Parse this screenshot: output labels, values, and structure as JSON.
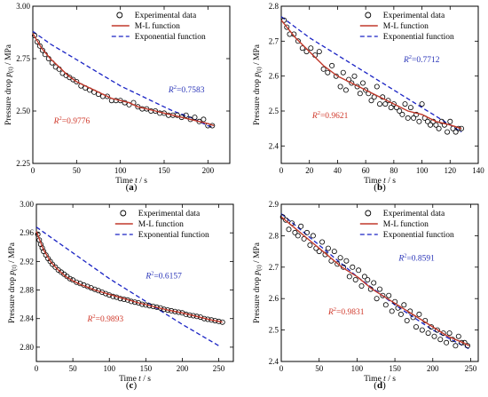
{
  "chart_data": [
    {
      "panel_label": "(a)",
      "type": "scatter",
      "xlabel": "Time t / s",
      "ylabel": "Pressure drop p_(t) / MPa",
      "xlim": [
        0,
        225
      ],
      "ylim": [
        2.25,
        3.0
      ],
      "xticks": [
        0,
        50,
        100,
        150,
        200
      ],
      "yticks": [
        2.25,
        2.5,
        2.75,
        3.0
      ],
      "ytick_labels": [
        "2.25",
        "2.50",
        "2.75",
        "3.00"
      ],
      "legend_position": "top-right",
      "legend": [
        "Experimental data",
        "M-L function",
        "Exponential function"
      ],
      "experimental": {
        "x": [
          2,
          5,
          8,
          11,
          14,
          18,
          22,
          26,
          30,
          34,
          38,
          42,
          46,
          50,
          55,
          60,
          65,
          70,
          75,
          80,
          85,
          90,
          95,
          100,
          105,
          110,
          115,
          120,
          125,
          130,
          135,
          140,
          145,
          150,
          155,
          160,
          165,
          170,
          175,
          180,
          185,
          190,
          195,
          200,
          205
        ],
        "y": [
          2.86,
          2.83,
          2.81,
          2.79,
          2.77,
          2.75,
          2.73,
          2.71,
          2.7,
          2.68,
          2.67,
          2.66,
          2.65,
          2.64,
          2.62,
          2.61,
          2.6,
          2.59,
          2.58,
          2.57,
          2.57,
          2.55,
          2.55,
          2.55,
          2.54,
          2.53,
          2.54,
          2.52,
          2.51,
          2.51,
          2.5,
          2.5,
          2.49,
          2.49,
          2.48,
          2.48,
          2.48,
          2.47,
          2.48,
          2.46,
          2.47,
          2.45,
          2.46,
          2.43,
          2.43
        ]
      },
      "ml_fit": {
        "x": [
          0,
          10,
          20,
          30,
          40,
          50,
          60,
          70,
          80,
          90,
          100,
          110,
          120,
          130,
          140,
          150,
          160,
          170,
          180,
          190,
          200,
          207
        ],
        "y": [
          2.87,
          2.8,
          2.75,
          2.71,
          2.67,
          2.64,
          2.62,
          2.6,
          2.58,
          2.56,
          2.55,
          2.54,
          2.52,
          2.51,
          2.5,
          2.49,
          2.48,
          2.47,
          2.46,
          2.45,
          2.44,
          2.43
        ]
      },
      "exp_fit": {
        "x": [
          0,
          20,
          40,
          60,
          80,
          100,
          120,
          140,
          160,
          180,
          200,
          207
        ],
        "y": [
          2.88,
          2.82,
          2.77,
          2.72,
          2.67,
          2.62,
          2.58,
          2.54,
          2.5,
          2.47,
          2.43,
          2.42
        ]
      },
      "annotations": [
        {
          "text_prefix": "R",
          "text_sup": "2",
          "text_value": "=0.7583",
          "color": "#2a35b8",
          "at": [
            155,
            2.59
          ]
        },
        {
          "text_prefix": "R",
          "text_sup": "2",
          "text_value": "=0.9776",
          "color": "#d0392b",
          "at": [
            24,
            2.44
          ]
        }
      ]
    },
    {
      "panel_label": "(b)",
      "type": "scatter",
      "xlabel": "Time t / s",
      "ylabel": "Pressure drop p_(t) / MPa",
      "xlim": [
        0,
        140
      ],
      "ylim": [
        2.35,
        2.8
      ],
      "xticks": [
        0,
        20,
        40,
        60,
        80,
        100,
        120,
        140
      ],
      "yticks": [
        2.4,
        2.5,
        2.6,
        2.7,
        2.8
      ],
      "ytick_labels": [
        "2.4",
        "2.5",
        "2.6",
        "2.7",
        "2.8"
      ],
      "legend_position": "top-right",
      "legend": [
        "Experimental data",
        "M-L function",
        "Exponential function"
      ],
      "experimental": {
        "x": [
          2,
          4,
          6,
          9,
          12,
          15,
          18,
          21,
          24,
          27,
          30,
          33,
          36,
          39,
          42,
          44,
          46,
          48,
          50,
          52,
          54,
          56,
          58,
          60,
          62,
          64,
          66,
          68,
          70,
          72,
          74,
          76,
          78,
          80,
          82,
          84,
          86,
          88,
          90,
          92,
          94,
          96,
          98,
          100,
          102,
          104,
          106,
          108,
          110,
          112,
          114,
          116,
          118,
          120,
          122,
          124,
          126,
          128
        ],
        "y": [
          2.76,
          2.74,
          2.72,
          2.72,
          2.7,
          2.68,
          2.67,
          2.68,
          2.66,
          2.67,
          2.62,
          2.61,
          2.63,
          2.6,
          2.57,
          2.61,
          2.56,
          2.59,
          2.58,
          2.6,
          2.57,
          2.55,
          2.58,
          2.56,
          2.55,
          2.53,
          2.54,
          2.57,
          2.52,
          2.54,
          2.52,
          2.53,
          2.51,
          2.52,
          2.51,
          2.5,
          2.49,
          2.52,
          2.48,
          2.51,
          2.48,
          2.49,
          2.47,
          2.52,
          2.48,
          2.47,
          2.46,
          2.47,
          2.46,
          2.45,
          2.47,
          2.46,
          2.44,
          2.47,
          2.45,
          2.44,
          2.45,
          2.45
        ]
      },
      "ml_fit": {
        "x": [
          0,
          10,
          20,
          30,
          40,
          50,
          60,
          70,
          80,
          90,
          100,
          110,
          120,
          128
        ],
        "y": [
          2.76,
          2.71,
          2.67,
          2.63,
          2.6,
          2.58,
          2.56,
          2.54,
          2.52,
          2.5,
          2.49,
          2.47,
          2.46,
          2.45
        ]
      },
      "exp_fit": {
        "x": [
          0,
          20,
          40,
          60,
          80,
          100,
          120,
          128
        ],
        "y": [
          2.77,
          2.71,
          2.66,
          2.61,
          2.56,
          2.51,
          2.46,
          2.44
        ]
      },
      "annotations": [
        {
          "text_prefix": "R",
          "text_sup": "2",
          "text_value": "=0.7712",
          "color": "#2a35b8",
          "at": [
            87,
            2.64
          ]
        },
        {
          "text_prefix": "R",
          "text_sup": "2",
          "text_value": "=0.9621",
          "color": "#d0392b",
          "at": [
            22,
            2.48
          ]
        }
      ]
    },
    {
      "panel_label": "(c)",
      "type": "scatter",
      "xlabel": "Time t / s",
      "ylabel": "Pressure drop p_(t) / MPa",
      "xlim": [
        0,
        270
      ],
      "ylim": [
        2.78,
        3.0
      ],
      "xticks": [
        0,
        50,
        100,
        150,
        200,
        250
      ],
      "yticks": [
        2.8,
        2.84,
        2.88,
        2.92,
        2.96,
        3.0
      ],
      "ytick_labels": [
        "2.80",
        "2.84",
        "2.88",
        "2.92",
        "2.96",
        "3.00"
      ],
      "legend_position": "top-right",
      "legend": [
        "Experimental data",
        "M-L function",
        "Exponential function"
      ],
      "experimental": {
        "x": [
          2,
          4,
          6,
          8,
          10,
          13,
          16,
          19,
          22,
          26,
          30,
          34,
          38,
          42,
          46,
          50,
          55,
          60,
          65,
          70,
          75,
          80,
          85,
          90,
          95,
          100,
          105,
          110,
          115,
          120,
          125,
          130,
          135,
          140,
          145,
          150,
          155,
          160,
          165,
          170,
          175,
          180,
          185,
          190,
          195,
          200,
          205,
          210,
          215,
          220,
          225,
          230,
          235,
          240,
          245,
          250,
          255
        ],
        "y": [
          2.958,
          2.95,
          2.944,
          2.939,
          2.934,
          2.929,
          2.924,
          2.92,
          2.916,
          2.912,
          2.908,
          2.905,
          2.902,
          2.899,
          2.896,
          2.894,
          2.891,
          2.889,
          2.887,
          2.885,
          2.883,
          2.881,
          2.879,
          2.877,
          2.875,
          2.873,
          2.871,
          2.87,
          2.868,
          2.867,
          2.866,
          2.864,
          2.863,
          2.862,
          2.86,
          2.859,
          2.858,
          2.857,
          2.856,
          2.855,
          2.853,
          2.852,
          2.851,
          2.85,
          2.849,
          2.848,
          2.846,
          2.845,
          2.844,
          2.843,
          2.842,
          2.84,
          2.839,
          2.838,
          2.837,
          2.836,
          2.835
        ]
      },
      "ml_fit": {
        "x": [
          0,
          10,
          20,
          30,
          40,
          50,
          60,
          70,
          80,
          90,
          100,
          120,
          140,
          160,
          180,
          200,
          220,
          240,
          255
        ],
        "y": [
          2.962,
          2.936,
          2.919,
          2.908,
          2.899,
          2.893,
          2.888,
          2.884,
          2.88,
          2.877,
          2.874,
          2.868,
          2.862,
          2.857,
          2.852,
          2.848,
          2.843,
          2.838,
          2.835
        ]
      },
      "exp_fit": {
        "x": [
          0,
          50,
          100,
          150,
          200,
          250
        ],
        "y": [
          2.968,
          2.932,
          2.896,
          2.864,
          2.832,
          2.802
        ]
      },
      "annotations": [
        {
          "text_prefix": "R",
          "text_sup": "2",
          "text_value": "=0.6157",
          "color": "#2a35b8",
          "at": [
            150,
            2.896
          ]
        },
        {
          "text_prefix": "R",
          "text_sup": "2",
          "text_value": "=0.9893",
          "color": "#d0392b",
          "at": [
            70,
            2.836
          ]
        }
      ]
    },
    {
      "panel_label": "(d)",
      "type": "scatter",
      "xlabel": "Time t / s",
      "ylabel": "Pressure drop p_(t) / MPa",
      "xlim": [
        0,
        260
      ],
      "ylim": [
        2.4,
        2.9
      ],
      "xticks": [
        0,
        50,
        100,
        150,
        200,
        250
      ],
      "yticks": [
        2.4,
        2.5,
        2.6,
        2.7,
        2.8,
        2.9
      ],
      "ytick_labels": [
        "2.4",
        "2.5",
        "2.6",
        "2.7",
        "2.8",
        "2.9"
      ],
      "legend_position": "top-right",
      "legend": [
        "Experimental data",
        "M-L function",
        "Exponential function"
      ],
      "experimental": {
        "x": [
          2,
          6,
          10,
          14,
          18,
          22,
          26,
          30,
          34,
          38,
          42,
          46,
          50,
          54,
          58,
          62,
          66,
          70,
          74,
          78,
          82,
          86,
          90,
          94,
          98,
          102,
          106,
          110,
          114,
          118,
          122,
          126,
          130,
          134,
          138,
          142,
          146,
          150,
          154,
          158,
          162,
          166,
          170,
          174,
          178,
          182,
          186,
          190,
          194,
          198,
          202,
          206,
          210,
          214,
          218,
          222,
          226,
          230,
          234,
          238,
          242,
          246
        ],
        "y": [
          2.86,
          2.85,
          2.82,
          2.84,
          2.81,
          2.8,
          2.83,
          2.79,
          2.81,
          2.77,
          2.8,
          2.76,
          2.75,
          2.78,
          2.74,
          2.76,
          2.72,
          2.75,
          2.71,
          2.73,
          2.7,
          2.72,
          2.67,
          2.7,
          2.66,
          2.69,
          2.64,
          2.67,
          2.66,
          2.63,
          2.65,
          2.6,
          2.63,
          2.61,
          2.58,
          2.61,
          2.56,
          2.59,
          2.57,
          2.55,
          2.58,
          2.53,
          2.56,
          2.54,
          2.51,
          2.55,
          2.5,
          2.53,
          2.49,
          2.51,
          2.48,
          2.5,
          2.47,
          2.49,
          2.46,
          2.49,
          2.47,
          2.45,
          2.48,
          2.46,
          2.46,
          2.45
        ]
      },
      "ml_fit": {
        "x": [
          0,
          20,
          40,
          60,
          80,
          100,
          120,
          140,
          160,
          180,
          200,
          220,
          240,
          248
        ],
        "y": [
          2.86,
          2.82,
          2.78,
          2.74,
          2.7,
          2.67,
          2.63,
          2.6,
          2.57,
          2.54,
          2.51,
          2.48,
          2.46,
          2.45
        ]
      },
      "exp_fit": {
        "x": [
          0,
          50,
          100,
          150,
          200,
          248
        ],
        "y": [
          2.87,
          2.77,
          2.67,
          2.58,
          2.5,
          2.44
        ]
      },
      "annotations": [
        {
          "text_prefix": "R",
          "text_sup": "2",
          "text_value": "=0.8591",
          "color": "#2a35b8",
          "at": [
            155,
            2.72
          ]
        },
        {
          "text_prefix": "R",
          "text_sup": "2",
          "text_value": "=0.9831",
          "color": "#d0392b",
          "at": [
            62,
            2.55
          ]
        }
      ]
    }
  ]
}
